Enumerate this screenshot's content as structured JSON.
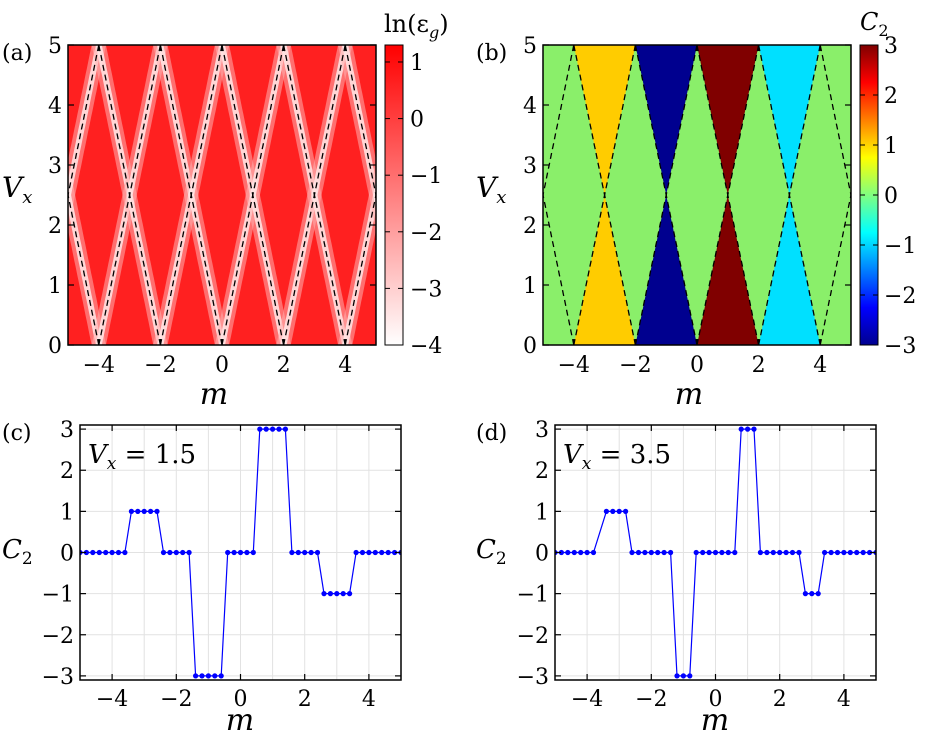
{
  "panel_labels": [
    "(a)",
    "(b)",
    "(c)",
    "(d)"
  ],
  "axis_labels": {
    "x": "m",
    "y_top": "V",
    "y_top_sub": "x",
    "y_bottom": "C",
    "y_bottom_sub": "2"
  },
  "colorbars": {
    "a": {
      "title": "ln(ε",
      "title_sub": "g",
      "title_close": ")",
      "ticks": [
        1,
        0,
        -1,
        -2,
        -3,
        -4
      ],
      "range": [
        -4,
        1.3
      ],
      "colors": {
        "low": "#ffffff",
        "high": "#ff0000"
      }
    },
    "b": {
      "title": "C",
      "title_sub": "2",
      "ticks": [
        3,
        2,
        1,
        0,
        -1,
        -2,
        -3
      ],
      "range": [
        -3,
        3
      ]
    }
  },
  "chart_data": [
    {
      "panel": "(a)",
      "type": "heatmap",
      "quantity": "ln(ε_g)",
      "xlim": [
        -5,
        5
      ],
      "ylim": [
        0,
        5
      ],
      "xticks": [
        -4,
        -2,
        0,
        2,
        4
      ],
      "yticks": [
        0,
        1,
        2,
        3,
        4,
        5
      ],
      "gap_closing_lines": "dashed black, m = ±V_x ± (odd), crossing at V_x = 2.5"
    },
    {
      "panel": "(b)",
      "type": "heatmap",
      "quantity": "C_2",
      "xlim": [
        -5,
        5
      ],
      "ylim": [
        0,
        5
      ],
      "xticks": [
        -4,
        -2,
        0,
        2,
        4
      ],
      "yticks": [
        0,
        1,
        2,
        3,
        4,
        5
      ],
      "regions": [
        {
          "center_m": -3,
          "value": 1
        },
        {
          "center_m": -1,
          "value": -3
        },
        {
          "center_m": 1,
          "value": 3
        },
        {
          "center_m": 3,
          "value": -1
        },
        {
          "elsewhere": true,
          "value": 0
        }
      ]
    },
    {
      "panel": "(c)",
      "type": "line",
      "annotation": {
        "lhs": "V",
        "sub": "x",
        "rhs": " = 1.5"
      },
      "Vx": 1.5,
      "xlim": [
        -5,
        5
      ],
      "ylim": [
        -3.1,
        3.1
      ],
      "xticks": [
        -4,
        -2,
        0,
        2,
        4
      ],
      "yticks": [
        3,
        2,
        1,
        0,
        -1,
        -2,
        -3
      ],
      "series": [
        {
          "color": "#0000ff",
          "step": 0.2,
          "plateaus": [
            {
              "from": -5.0,
              "to": -3.6,
              "value": 0
            },
            {
              "from": -3.4,
              "to": -2.6,
              "value": 1
            },
            {
              "from": -2.4,
              "to": -1.6,
              "value": 0
            },
            {
              "from": -1.4,
              "to": -0.6,
              "value": -3
            },
            {
              "from": -0.4,
              "to": 0.4,
              "value": 0
            },
            {
              "from": 0.6,
              "to": 1.4,
              "value": 3
            },
            {
              "from": 1.6,
              "to": 2.4,
              "value": 0
            },
            {
              "from": 2.6,
              "to": 3.4,
              "value": -1
            },
            {
              "from": 3.6,
              "to": 5.0,
              "value": 0
            }
          ]
        }
      ]
    },
    {
      "panel": "(d)",
      "type": "line",
      "annotation": {
        "lhs": "V",
        "sub": "x",
        "rhs": " = 3.5"
      },
      "Vx": 3.5,
      "xlim": [
        -5,
        5
      ],
      "ylim": [
        -3.1,
        3.1
      ],
      "xticks": [
        -4,
        -2,
        0,
        2,
        4
      ],
      "yticks": [
        3,
        2,
        1,
        0,
        -1,
        -2,
        -3
      ],
      "series": [
        {
          "color": "#0000ff",
          "step": 0.2,
          "plateaus": [
            {
              "from": -5.0,
              "to": -3.8,
              "value": 0
            },
            {
              "from": -3.4,
              "to": -2.8,
              "value": 1
            },
            {
              "from": -2.6,
              "to": -1.4,
              "value": 0
            },
            {
              "from": -1.2,
              "to": -0.8,
              "value": -3
            },
            {
              "from": -0.6,
              "to": 0.6,
              "value": 0
            },
            {
              "from": 0.8,
              "to": 1.2,
              "value": 3
            },
            {
              "from": 1.4,
              "to": 2.6,
              "value": 0
            },
            {
              "from": 2.8,
              "to": 3.2,
              "value": -1
            },
            {
              "from": 3.4,
              "to": 5.0,
              "value": 0
            }
          ]
        }
      ]
    }
  ]
}
